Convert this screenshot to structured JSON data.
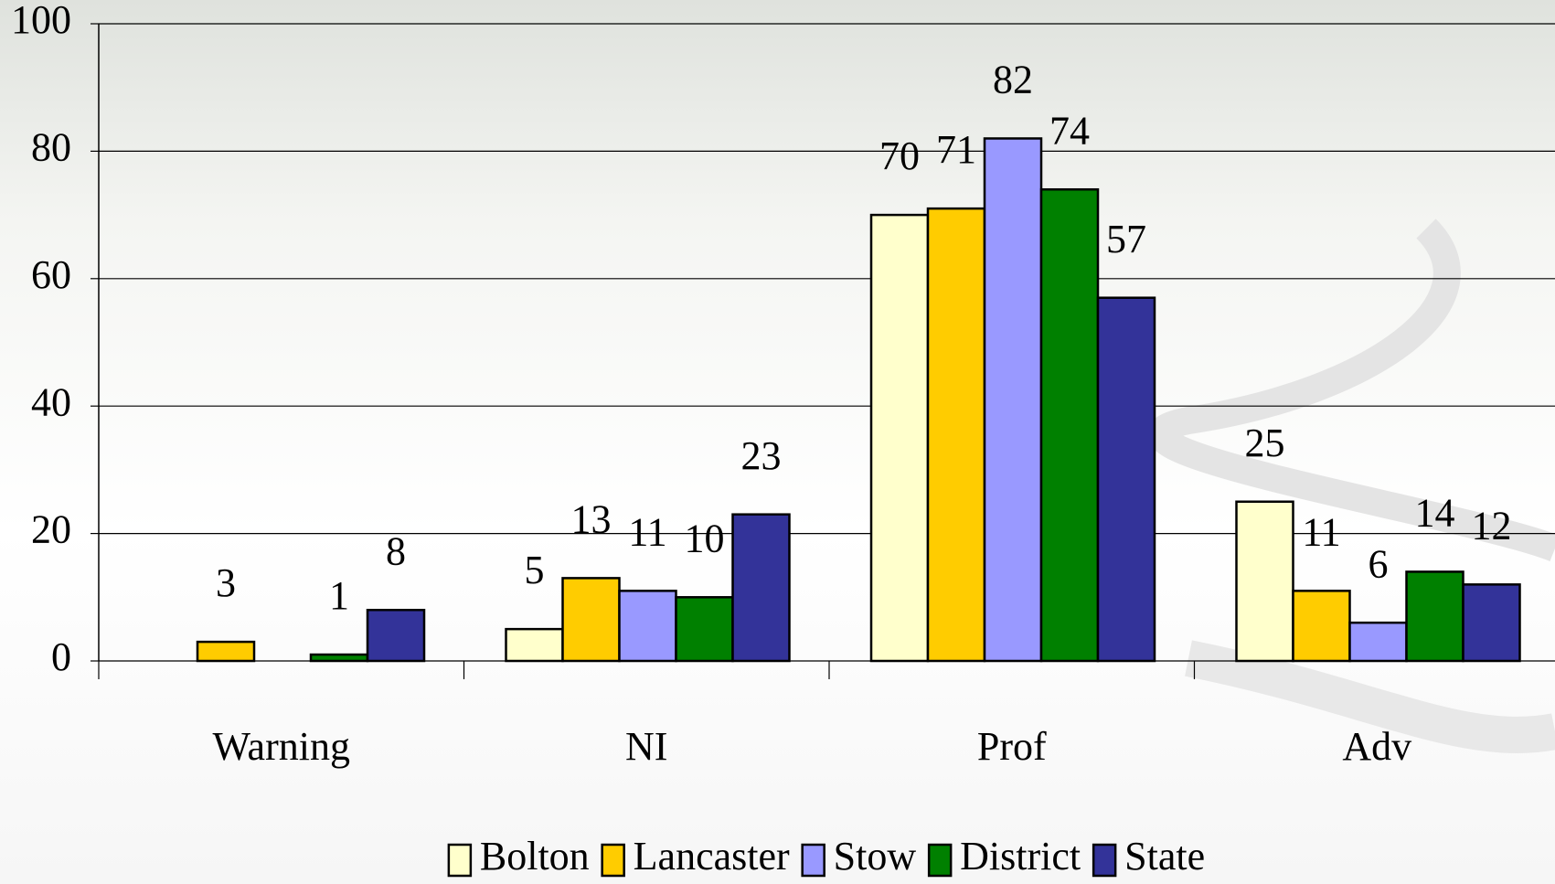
{
  "chart_data": {
    "type": "bar",
    "categories": [
      "Warning",
      "NI",
      "Prof",
      "Adv"
    ],
    "series": [
      {
        "name": "Bolton",
        "color": "#FFFFCC",
        "values": [
          null,
          5,
          70,
          25
        ]
      },
      {
        "name": "Lancaster",
        "color": "#FFCC00",
        "values": [
          3,
          13,
          71,
          11
        ]
      },
      {
        "name": "Stow",
        "color": "#9999FF",
        "values": [
          null,
          11,
          82,
          6
        ]
      },
      {
        "name": "District",
        "color": "#008000",
        "values": [
          1,
          10,
          74,
          14
        ]
      },
      {
        "name": "State",
        "color": "#333399",
        "values": [
          8,
          23,
          57,
          12
        ]
      }
    ],
    "ylim": [
      0,
      100
    ],
    "yticks": [
      0,
      20,
      40,
      60,
      80,
      100
    ],
    "grid": true,
    "legend": "bottom"
  }
}
